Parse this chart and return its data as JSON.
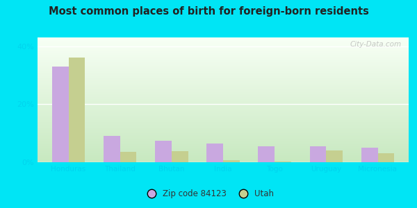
{
  "title": "Most common places of birth for foreign-born residents",
  "categories": [
    "Honduras",
    "Thailand",
    "Bhutan",
    "India",
    "Togo",
    "Uruguay",
    "Micronesia"
  ],
  "zip_values": [
    33,
    9,
    7.5,
    6.5,
    5.5,
    5.5,
    5.0
  ],
  "utah_values": [
    36,
    3.5,
    3.8,
    0.8,
    0.3,
    4.0,
    3.2
  ],
  "zip_color": "#c9a8e0",
  "utah_color": "#c5cf90",
  "background_outer": "#00e5f5",
  "background_inner_color1": "#f0f9ee",
  "background_inner_color2": "#c8e8c0",
  "yticks": [
    0,
    20,
    40
  ],
  "ylim": [
    0,
    43
  ],
  "legend_zip_label": "Zip code 84123",
  "legend_utah_label": "Utah",
  "watermark": "City-Data.com",
  "bar_width": 0.32,
  "tick_label_color": "#00d4ee",
  "title_color": "#222222",
  "grid_color": "#e0e0e0"
}
